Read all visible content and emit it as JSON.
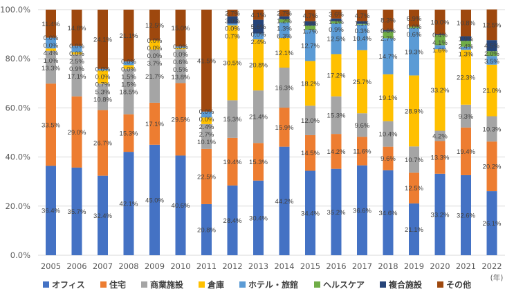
{
  "chart_data": {
    "type": "bar",
    "stacked": true,
    "title": "",
    "xlabel": "",
    "ylabel": "",
    "x_unit": "(年)",
    "ylim": [
      0,
      100
    ],
    "yticks": [
      "0.0%",
      "20.0%",
      "40.0%",
      "60.0%",
      "80.0%",
      "100.0%"
    ],
    "grid": true,
    "legend_position": "bottom",
    "categories": [
      "2005",
      "2006",
      "2007",
      "2008",
      "2009",
      "2010",
      "2011",
      "2012",
      "2013",
      "2014",
      "2015",
      "2016",
      "2017",
      "2018",
      "2019",
      "2020",
      "2021",
      "2022"
    ],
    "series": [
      {
        "name": "オフィス",
        "color": "#4472C4",
        "values": [
          36.4,
          35.7,
          32.4,
          42.1,
          45.0,
          40.6,
          20.8,
          28.4,
          30.4,
          44.2,
          34.4,
          35.2,
          36.6,
          34.6,
          21.1,
          33.2,
          32.6,
          26.1
        ]
      },
      {
        "name": "住宅",
        "color": "#ED7D31",
        "values": [
          33.5,
          29.0,
          26.7,
          15.3,
          17.1,
          29.5,
          22.5,
          19.4,
          15.3,
          15.9,
          14.5,
          14.2,
          11.6,
          9.6,
          12.5,
          13.3,
          19.4,
          20.2
        ]
      },
      {
        "name": "商業施設",
        "color": "#A5A5A5",
        "values": [
          13.3,
          17.1,
          10.8,
          18.5,
          21.7,
          13.8,
          10.1,
          15.3,
          21.4,
          16.3,
          12.0,
          15.3,
          9.6,
          10.4,
          10.7,
          4.2,
          9.3,
          10.3
        ]
      },
      {
        "name": "倉庫",
        "color": "#FFC000",
        "values": [
          1.0,
          0.9,
          5.3,
          1.5,
          3.7,
          0.5,
          2.7,
          30.5,
          20.8,
          12.1,
          18.2,
          17.2,
          25.7,
          19.1,
          28.9,
          33.2,
          22.3,
          21.0
        ]
      },
      {
        "name": "ホテル・旅館",
        "color": "#5B9BD5",
        "values": [
          4.4,
          2.5,
          0.7,
          1.5,
          0.0,
          0.6,
          2.4,
          0.7,
          2.4,
          6.3,
          12.7,
          12.5,
          10.4,
          14.7,
          19.3,
          1.6,
          1.3,
          3.5
        ]
      },
      {
        "name": "ヘルスケア",
        "color": "#70AD47",
        "values": [
          0.0,
          0.0,
          0.0,
          0.0,
          0.0,
          0.0,
          0.0,
          0.0,
          0.0,
          1.3,
          1.7,
          0.9,
          0.3,
          2.7,
          0.6,
          4.1,
          2.4,
          2.0
        ]
      },
      {
        "name": "複合施設",
        "color": "#264478",
        "values": [
          0.0,
          0.0,
          0.0,
          0.0,
          0.0,
          0.0,
          0.0,
          3.0,
          5.6,
          1.2,
          1.8,
          1.1,
          1.1,
          0.6,
          0.0,
          0.4,
          1.9,
          4.5
        ]
      },
      {
        "name": "その他",
        "color": "#9E480E",
        "values": [
          11.4,
          14.8,
          24.1,
          21.1,
          12.5,
          15.0,
          41.5,
          2.7,
          4.1,
          2.7,
          4.7,
          3.6,
          4.7,
          8.3,
          6.9,
          10.0,
          10.8,
          12.5
        ]
      }
    ]
  }
}
